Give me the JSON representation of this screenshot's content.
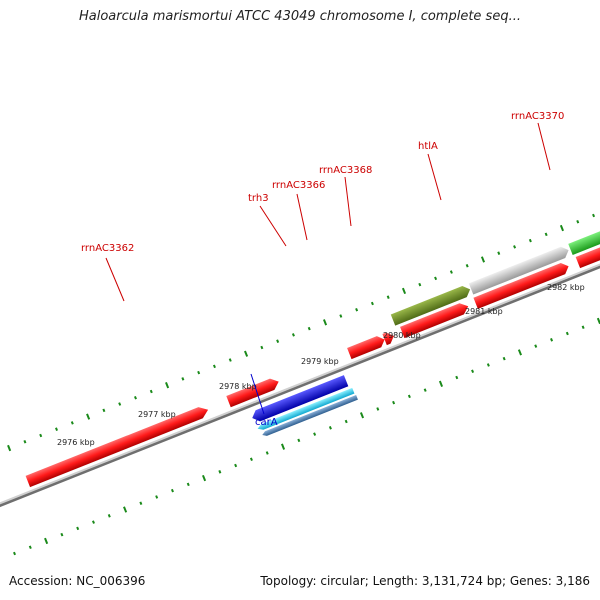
{
  "title": "Haloarcula marismortui ATCC 43049 chromosome I, complete seq...",
  "accession": "Accession: NC_006396",
  "topology": "Topology: circular; Length: 3,131,724 bp; Genes: 3,186",
  "kbp_labels": [
    "2976 kbp",
    "2977 kbp",
    "2978 kbp",
    "2979 kbp",
    "2980 kbp",
    "2981 kbp",
    "2982 kbp"
  ],
  "feature_labels": [
    "rrnAC3362",
    "trh3",
    "rrnAC3366",
    "rrnAC3368",
    "htlA",
    "rrnAC3370",
    "carA"
  ],
  "colors": {
    "forward_gene": "#ff1a1a",
    "reverse_gene": "#ee1111",
    "olive_gene": "#6b8e23",
    "grey_gene": "#bdbdbd",
    "green_gene": "#33cc33",
    "blue_gene": "#1414e0",
    "cyan_gene": "#22d3f0",
    "steel_gene": "#4a7fb3",
    "tick": "#1a8a1a",
    "backbone": "#7a7a7a",
    "label_red": "#cc0000",
    "label_blue": "#0000cc"
  }
}
